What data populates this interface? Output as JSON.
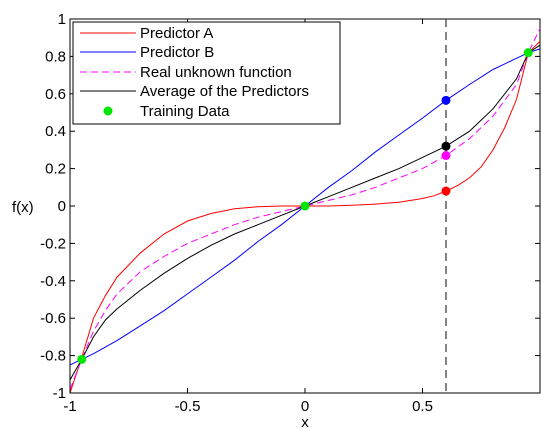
{
  "chart_data": {
    "type": "line",
    "xlabel": "x",
    "ylabel": "f(x)",
    "xlim": [
      -1,
      1
    ],
    "ylim": [
      -1,
      1
    ],
    "x_ticks": [
      -1,
      -0.5,
      0,
      0.5
    ],
    "x_tick_labels": [
      "-1",
      "-0.5",
      "0",
      "0.5"
    ],
    "y_ticks": [
      -1,
      -0.8,
      -0.6,
      -0.4,
      -0.2,
      0,
      0.2,
      0.4,
      0.6,
      0.8,
      1
    ],
    "y_tick_labels": [
      "-1",
      "-0.8",
      "-0.6",
      "-0.4",
      "-0.2",
      "0",
      "0.2",
      "0.4",
      "0.6",
      "0.8",
      "1"
    ],
    "grid": false,
    "legend_position": "top-left",
    "series": [
      {
        "name": "Predictor A",
        "color": "#ff0000",
        "dash": "solid",
        "x": [
          -1,
          -0.95,
          -0.9,
          -0.85,
          -0.8,
          -0.7,
          -0.6,
          -0.5,
          -0.4,
          -0.3,
          -0.2,
          -0.1,
          0,
          0.1,
          0.2,
          0.3,
          0.4,
          0.5,
          0.55,
          0.6,
          0.65,
          0.7,
          0.75,
          0.8,
          0.85,
          0.9,
          0.95,
          1
        ],
        "y": [
          -1,
          -0.81,
          -0.6,
          -0.48,
          -0.38,
          -0.25,
          -0.15,
          -0.08,
          -0.04,
          -0.015,
          -0.004,
          0,
          0,
          0,
          0.004,
          0.01,
          0.02,
          0.04,
          0.055,
          0.08,
          0.11,
          0.15,
          0.21,
          0.3,
          0.42,
          0.57,
          0.82,
          0.88
        ]
      },
      {
        "name": "Predictor B",
        "color": "#0000ff",
        "dash": "solid",
        "x": [
          -1,
          -0.95,
          -0.9,
          -0.8,
          -0.7,
          -0.6,
          -0.5,
          -0.4,
          -0.3,
          -0.2,
          -0.1,
          0,
          0.1,
          0.2,
          0.3,
          0.4,
          0.5,
          0.6,
          0.7,
          0.8,
          0.9,
          0.95,
          1
        ],
        "y": [
          -0.85,
          -0.82,
          -0.79,
          -0.72,
          -0.64,
          -0.56,
          -0.47,
          -0.38,
          -0.29,
          -0.19,
          -0.1,
          0,
          0.1,
          0.19,
          0.29,
          0.38,
          0.47,
          0.565,
          0.65,
          0.73,
          0.79,
          0.82,
          0.84
        ]
      },
      {
        "name": "Real unknown function",
        "color": "#ff00ff",
        "dash": "dashed",
        "x": [
          -1,
          -0.95,
          -0.9,
          -0.85,
          -0.8,
          -0.7,
          -0.6,
          -0.5,
          -0.4,
          -0.3,
          -0.2,
          -0.1,
          0,
          0.1,
          0.2,
          0.3,
          0.4,
          0.5,
          0.6,
          0.7,
          0.8,
          0.9,
          0.95,
          1
        ],
        "y": [
          -0.98,
          -0.82,
          -0.67,
          -0.56,
          -0.47,
          -0.35,
          -0.27,
          -0.2,
          -0.15,
          -0.1,
          -0.06,
          -0.03,
          0,
          0.03,
          0.06,
          0.1,
          0.15,
          0.2,
          0.27,
          0.36,
          0.48,
          0.65,
          0.82,
          0.95
        ]
      },
      {
        "name": "Average of the Predictors",
        "color": "#000000",
        "dash": "solid",
        "x": [
          -1,
          -0.95,
          -0.9,
          -0.85,
          -0.8,
          -0.7,
          -0.6,
          -0.5,
          -0.4,
          -0.3,
          -0.2,
          -0.1,
          0,
          0.1,
          0.2,
          0.3,
          0.4,
          0.5,
          0.6,
          0.7,
          0.8,
          0.9,
          0.95,
          1
        ],
        "y": [
          -0.93,
          -0.82,
          -0.7,
          -0.61,
          -0.55,
          -0.45,
          -0.36,
          -0.28,
          -0.21,
          -0.15,
          -0.1,
          -0.05,
          0,
          0.05,
          0.1,
          0.15,
          0.2,
          0.26,
          0.32,
          0.4,
          0.52,
          0.68,
          0.82,
          0.86
        ]
      }
    ],
    "training_data": {
      "name": "Training Data",
      "color": "#00e600",
      "x": [
        -0.95,
        0,
        0.95
      ],
      "y": [
        -0.82,
        0,
        0.82
      ]
    },
    "query_x": 0.6,
    "query_points": [
      {
        "label": "Predictor A",
        "x": 0.6,
        "y": 0.08,
        "color": "#ff0000"
      },
      {
        "label": "Real unknown function",
        "x": 0.6,
        "y": 0.27,
        "color": "#ff00ff"
      },
      {
        "label": "Average of the Predictors",
        "x": 0.6,
        "y": 0.32,
        "color": "#000000"
      },
      {
        "label": "Predictor B",
        "x": 0.6,
        "y": 0.565,
        "color": "#0000ff"
      }
    ]
  }
}
